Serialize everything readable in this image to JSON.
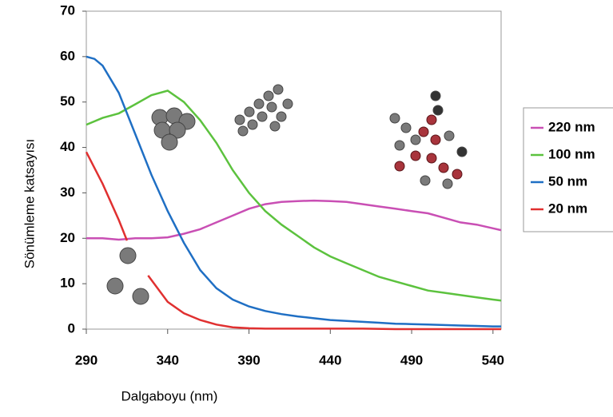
{
  "chart_data": {
    "type": "line",
    "x_label": "Dalgaboyu (nm)",
    "y_label": "Sönümleme katsayısı",
    "xlim": [
      290,
      545
    ],
    "xticks": [
      290,
      340,
      390,
      440,
      490,
      540
    ],
    "ylim": [
      0,
      70
    ],
    "yticks": [
      0,
      10,
      20,
      30,
      40,
      50,
      60,
      70
    ],
    "series": [
      {
        "name": "220 nm",
        "color": "#c94fb4",
        "x": [
          290,
          300,
          310,
          320,
          330,
          340,
          350,
          360,
          370,
          380,
          390,
          400,
          410,
          420,
          430,
          440,
          450,
          460,
          470,
          480,
          490,
          500,
          510,
          520,
          530,
          540,
          545
        ],
        "values": [
          20,
          20,
          19.7,
          20,
          20,
          20.2,
          21,
          22,
          23.5,
          25,
          26.5,
          27.5,
          28,
          28.2,
          28.3,
          28.2,
          28,
          27.5,
          27,
          26.5,
          26,
          25.5,
          24.5,
          23.5,
          23,
          22.2,
          21.8
        ]
      },
      {
        "name": "100 nm",
        "color": "#5cc23e",
        "x": [
          290,
          300,
          310,
          320,
          330,
          340,
          350,
          360,
          370,
          380,
          390,
          400,
          410,
          420,
          430,
          440,
          450,
          460,
          470,
          480,
          490,
          500,
          510,
          520,
          530,
          540,
          545
        ],
        "values": [
          45,
          46.5,
          47.5,
          49.5,
          51.5,
          52.5,
          50,
          46,
          41,
          35,
          30,
          26,
          23,
          20.5,
          18,
          16,
          14.5,
          13,
          11.5,
          10.5,
          9.5,
          8.5,
          8,
          7.5,
          7,
          6.5,
          6.3
        ]
      },
      {
        "name": "50 nm",
        "color": "#1f6fc4",
        "x": [
          290,
          295,
          300,
          310,
          320,
          330,
          340,
          350,
          360,
          370,
          380,
          390,
          400,
          410,
          420,
          430,
          440,
          450,
          460,
          470,
          480,
          490,
          500,
          510,
          520,
          530,
          540,
          545
        ],
        "values": [
          60,
          59.5,
          58,
          52,
          43,
          34,
          26,
          19,
          13,
          9,
          6.5,
          5,
          4,
          3.3,
          2.8,
          2.4,
          2,
          1.8,
          1.6,
          1.4,
          1.2,
          1.1,
          1,
          0.9,
          0.8,
          0.7,
          0.6,
          0.6
        ]
      },
      {
        "name": "20 nm",
        "color": "#e03030",
        "x": [
          290,
          300,
          310,
          315,
          320,
          328,
          340,
          350,
          360,
          370,
          380,
          390,
          400,
          420,
          440,
          460,
          480,
          500,
          520,
          545
        ],
        "values": [
          39,
          32,
          24,
          19.5,
          null,
          11.8,
          6,
          3.5,
          2,
          1,
          0.4,
          0.2,
          0.1,
          0.1,
          0.1,
          0.1,
          0,
          0,
          0,
          0
        ]
      }
    ]
  }
}
